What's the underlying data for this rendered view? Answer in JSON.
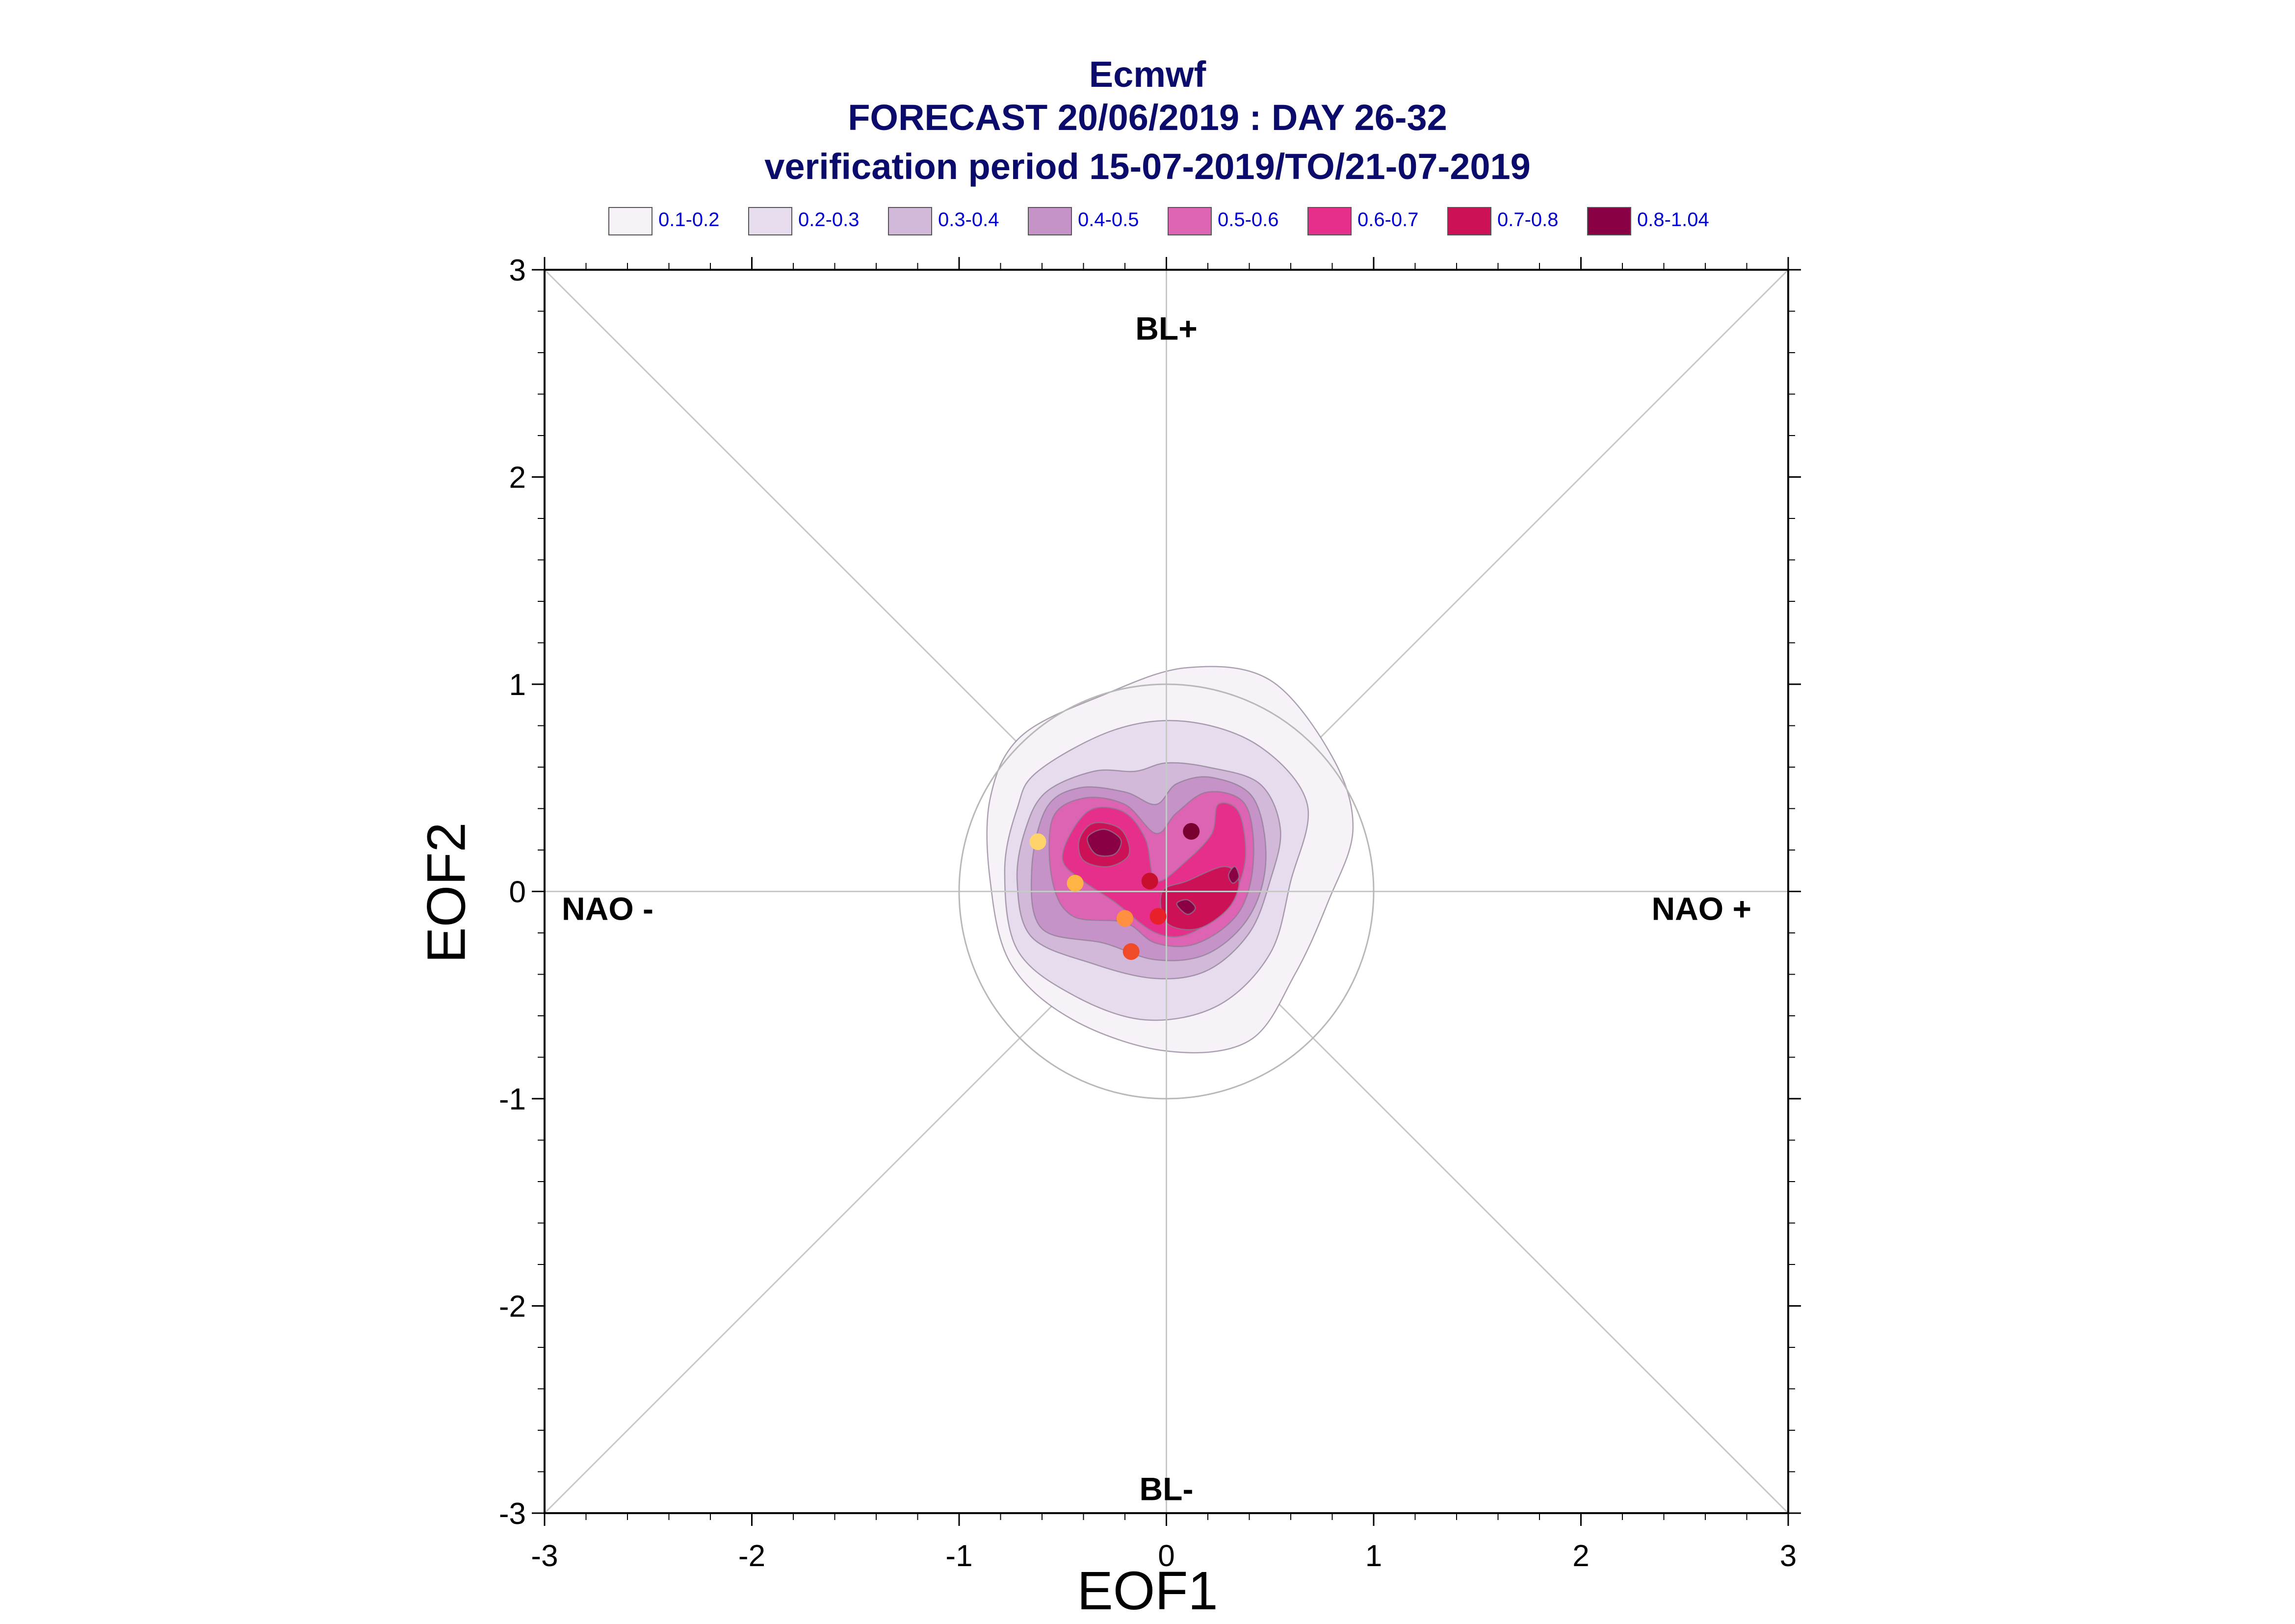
{
  "header": {
    "title": "Ecmwf",
    "subtitle": "FORECAST 20/06/2019 : DAY 26-32",
    "period": "verification period 15-07-2019/TO/21-07-2019"
  },
  "legend": [
    {
      "label": "0.1-0.2",
      "color": "#f6f2f8"
    },
    {
      "label": "0.2-0.3",
      "color": "#e6dced"
    },
    {
      "label": "0.3-0.4",
      "color": "#d2b9da"
    },
    {
      "label": "0.4-0.5",
      "color": "#c693c8"
    },
    {
      "label": "0.5-0.6",
      "color": "#dc64b2"
    },
    {
      "label": "0.6-0.7",
      "color": "#e52f8a"
    },
    {
      "label": "0.7-0.8",
      "color": "#cc1157"
    },
    {
      "label": "0.8-1.04",
      "color": "#8a0044"
    }
  ],
  "chart_data": {
    "type": "scatter",
    "xlabel": "EOF1",
    "ylabel": "EOF2",
    "xlim": [
      -3,
      3
    ],
    "ylim": [
      -3,
      3
    ],
    "xticks": [
      "-3",
      "-2",
      "-1",
      "0",
      "1",
      "2",
      "3"
    ],
    "yticks": [
      "-3",
      "-2",
      "-1",
      "0",
      "1",
      "2",
      "3"
    ],
    "grid": "diagonals and zero lines",
    "regime_labels": {
      "top": "BL+",
      "bottom": "BL-",
      "left": "NAO -",
      "right": "NAO +"
    },
    "reference_circle_radius": 1,
    "density_contours": [
      {
        "level": "0.1-0.2",
        "color": "#f6f2f8",
        "points": [
          [
            -0.7,
            0.75
          ],
          [
            -0.3,
            0.95
          ],
          [
            0.1,
            1.08
          ],
          [
            0.5,
            1.02
          ],
          [
            0.8,
            0.65
          ],
          [
            0.9,
            0.3
          ],
          [
            0.78,
            -0.05
          ],
          [
            0.62,
            -0.4
          ],
          [
            0.4,
            -0.72
          ],
          [
            0.0,
            -0.77
          ],
          [
            -0.45,
            -0.62
          ],
          [
            -0.75,
            -0.35
          ],
          [
            -0.85,
            0.05
          ],
          [
            -0.85,
            0.45
          ]
        ]
      },
      {
        "level": "0.2-0.3",
        "color": "#e6dced",
        "points": [
          [
            -0.62,
            0.58
          ],
          [
            -0.25,
            0.78
          ],
          [
            0.1,
            0.82
          ],
          [
            0.45,
            0.7
          ],
          [
            0.68,
            0.42
          ],
          [
            0.6,
            0.05
          ],
          [
            0.5,
            -0.3
          ],
          [
            0.25,
            -0.55
          ],
          [
            -0.1,
            -0.62
          ],
          [
            -0.45,
            -0.5
          ],
          [
            -0.72,
            -0.28
          ],
          [
            -0.78,
            0.1
          ],
          [
            -0.72,
            0.4
          ]
        ]
      },
      {
        "level": "0.3-0.4",
        "color": "#d2b9da",
        "points": [
          [
            -0.58,
            0.48
          ],
          [
            -0.35,
            0.58
          ],
          [
            -0.15,
            0.58
          ],
          [
            0.0,
            0.62
          ],
          [
            0.2,
            0.6
          ],
          [
            0.45,
            0.52
          ],
          [
            0.55,
            0.3
          ],
          [
            0.5,
            0.05
          ],
          [
            0.4,
            -0.2
          ],
          [
            0.2,
            -0.38
          ],
          [
            -0.05,
            -0.42
          ],
          [
            -0.35,
            -0.35
          ],
          [
            -0.65,
            -0.22
          ],
          [
            -0.72,
            0.05
          ],
          [
            -0.68,
            0.3
          ]
        ]
      },
      {
        "level": "0.4-0.5",
        "color": "#c693c8",
        "points": [
          [
            -0.58,
            0.4
          ],
          [
            -0.42,
            0.5
          ],
          [
            -0.2,
            0.48
          ],
          [
            -0.05,
            0.42
          ],
          [
            0.05,
            0.52
          ],
          [
            0.22,
            0.55
          ],
          [
            0.42,
            0.45
          ],
          [
            0.48,
            0.15
          ],
          [
            0.4,
            -0.12
          ],
          [
            0.2,
            -0.3
          ],
          [
            -0.05,
            -0.33
          ],
          [
            -0.3,
            -0.25
          ],
          [
            -0.6,
            -0.18
          ],
          [
            -0.65,
            0.1
          ]
        ]
      },
      {
        "level": "0.5-0.6",
        "color": "#dc64b2",
        "points": [
          [
            -0.55,
            0.35
          ],
          [
            -0.4,
            0.45
          ],
          [
            -0.2,
            0.42
          ],
          [
            -0.05,
            0.28
          ],
          [
            0.05,
            0.38
          ],
          [
            0.2,
            0.48
          ],
          [
            0.38,
            0.42
          ],
          [
            0.42,
            0.15
          ],
          [
            0.35,
            -0.1
          ],
          [
            0.15,
            -0.25
          ],
          [
            -0.05,
            -0.25
          ],
          [
            -0.2,
            -0.15
          ],
          [
            -0.45,
            -0.12
          ],
          [
            -0.55,
            0.05
          ]
        ]
      },
      {
        "level": "0.6-0.7",
        "color": "#e52f8a",
        "points": [
          [
            -0.45,
            0.3
          ],
          [
            -0.35,
            0.4
          ],
          [
            -0.2,
            0.38
          ],
          [
            -0.1,
            0.25
          ],
          [
            -0.05,
            0.05
          ],
          [
            0.1,
            0.15
          ],
          [
            0.22,
            0.28
          ],
          [
            0.25,
            0.42
          ],
          [
            0.35,
            0.38
          ],
          [
            0.38,
            0.15
          ],
          [
            0.3,
            -0.05
          ],
          [
            0.12,
            -0.2
          ],
          [
            -0.05,
            -0.2
          ],
          [
            -0.25,
            -0.05
          ],
          [
            -0.4,
            0.05
          ],
          [
            -0.5,
            0.15
          ]
        ]
      },
      {
        "level": "0.7-0.8",
        "color": "#cc1157",
        "points": [
          [
            -0.42,
            0.25
          ],
          [
            -0.35,
            0.33
          ],
          [
            -0.22,
            0.3
          ],
          [
            -0.18,
            0.18
          ],
          [
            -0.28,
            0.12
          ],
          [
            -0.4,
            0.15
          ]
        ]
      },
      {
        "level": "0.7-0.8",
        "color": "#cc1157",
        "points": [
          [
            -0.02,
            0.0
          ],
          [
            0.1,
            0.05
          ],
          [
            0.28,
            0.12
          ],
          [
            0.35,
            0.05
          ],
          [
            0.3,
            -0.08
          ],
          [
            0.15,
            -0.18
          ],
          [
            0.0,
            -0.15
          ]
        ]
      },
      {
        "level": "0.8-1.04",
        "color": "#8a0044",
        "points": [
          [
            -0.38,
            0.26
          ],
          [
            -0.3,
            0.3
          ],
          [
            -0.22,
            0.25
          ],
          [
            -0.25,
            0.18
          ],
          [
            -0.34,
            0.18
          ]
        ]
      },
      {
        "level": "0.8-1.04",
        "color": "#8a0044",
        "points": [
          [
            0.05,
            -0.06
          ],
          [
            0.1,
            -0.04
          ],
          [
            0.14,
            -0.08
          ],
          [
            0.1,
            -0.11
          ]
        ]
      },
      {
        "level": "0.8-1.04",
        "color": "#8a0044",
        "points": [
          [
            0.3,
            0.08
          ],
          [
            0.33,
            0.12
          ],
          [
            0.35,
            0.07
          ],
          [
            0.32,
            0.04
          ]
        ]
      }
    ],
    "points": [
      {
        "x": 0.12,
        "y": 0.29,
        "color": "#7a0030"
      },
      {
        "x": -0.62,
        "y": 0.24,
        "color": "#ffd36b"
      },
      {
        "x": -0.44,
        "y": 0.04,
        "color": "#ffb545"
      },
      {
        "x": -0.08,
        "y": 0.05,
        "color": "#c8102e"
      },
      {
        "x": -0.04,
        "y": -0.12,
        "color": "#e8202a"
      },
      {
        "x": -0.2,
        "y": -0.13,
        "color": "#ff9040"
      },
      {
        "x": -0.17,
        "y": -0.29,
        "color": "#f04a28"
      }
    ]
  }
}
